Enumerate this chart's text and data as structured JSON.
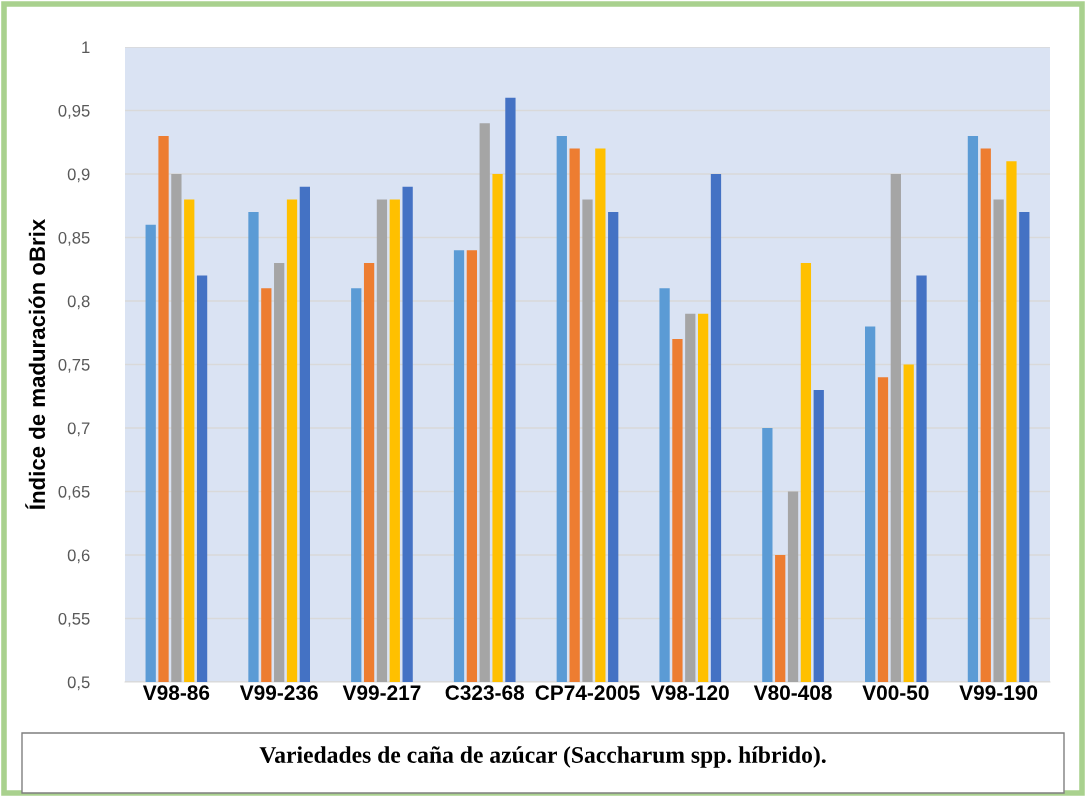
{
  "chart_data": {
    "type": "bar",
    "xlabel": "Variedades de caña de azúcar (Saccharum spp. híbrido).",
    "ylabel": "Índice de maduración oBrix",
    "categories": [
      "V98-86",
      "V99-236",
      "V99-217",
      "C323-68",
      "CP74-2005",
      "V98-120",
      "V80-408",
      "V00-50",
      "V99-190"
    ],
    "series": [
      {
        "color": "#5b9bd5",
        "values": [
          0.86,
          0.87,
          0.81,
          0.84,
          0.93,
          0.81,
          0.7,
          0.78,
          0.93
        ]
      },
      {
        "color": "#ed7d31",
        "values": [
          0.93,
          0.81,
          0.83,
          0.84,
          0.92,
          0.77,
          0.6,
          0.74,
          0.92
        ]
      },
      {
        "color": "#a5a5a5",
        "values": [
          0.9,
          0.83,
          0.88,
          0.94,
          0.88,
          0.79,
          0.65,
          0.9,
          0.88
        ]
      },
      {
        "color": "#ffc000",
        "values": [
          0.88,
          0.88,
          0.88,
          0.9,
          0.92,
          0.79,
          0.83,
          0.75,
          0.91
        ]
      },
      {
        "color": "#4472c4",
        "values": [
          0.82,
          0.89,
          0.89,
          0.96,
          0.87,
          0.9,
          0.73,
          0.82,
          0.87
        ]
      }
    ],
    "ylim": [
      0.5,
      1
    ],
    "yticks": [
      {
        "value": 0.5,
        "label": "0,5"
      },
      {
        "value": 0.55,
        "label": "0,55"
      },
      {
        "value": 0.6,
        "label": "0,6"
      },
      {
        "value": 0.65,
        "label": "0,65"
      },
      {
        "value": 0.7,
        "label": "0,7"
      },
      {
        "value": 0.75,
        "label": "0,75"
      },
      {
        "value": 0.8,
        "label": "0,8"
      },
      {
        "value": 0.85,
        "label": "0,85"
      },
      {
        "value": 0.9,
        "label": "0,9"
      },
      {
        "value": 0.95,
        "label": "0,95"
      },
      {
        "value": 1,
        "label": "1"
      }
    ],
    "grid": "y"
  }
}
